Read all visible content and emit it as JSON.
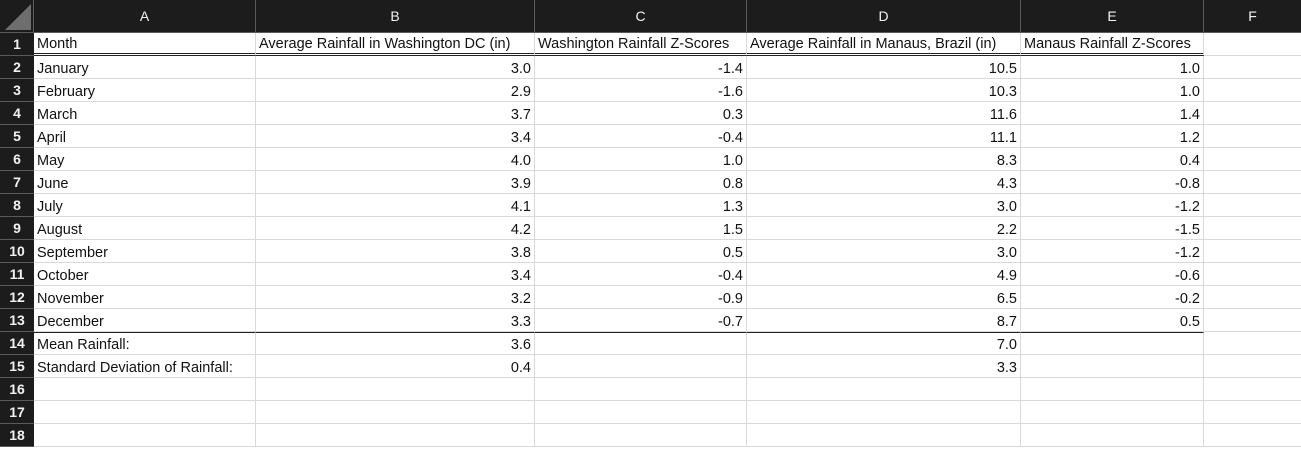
{
  "columns": [
    "A",
    "B",
    "C",
    "D",
    "E",
    "F"
  ],
  "headers": {
    "month": "Month",
    "dc_rain": "Average Rainfall in Washington DC (in)",
    "dc_z": "Washington Rainfall Z-Scores",
    "manaus_rain": "Average Rainfall in Manaus, Brazil (in)",
    "manaus_z": "Manaus Rainfall Z-Scores"
  },
  "rows": [
    {
      "month": "January",
      "dc": "3.0",
      "dcz": "-1.4",
      "mn": "10.5",
      "mnz": "1.0"
    },
    {
      "month": "February",
      "dc": "2.9",
      "dcz": "-1.6",
      "mn": "10.3",
      "mnz": "1.0"
    },
    {
      "month": "March",
      "dc": "3.7",
      "dcz": "0.3",
      "mn": "11.6",
      "mnz": "1.4"
    },
    {
      "month": "April",
      "dc": "3.4",
      "dcz": "-0.4",
      "mn": "11.1",
      "mnz": "1.2"
    },
    {
      "month": "May",
      "dc": "4.0",
      "dcz": "1.0",
      "mn": "8.3",
      "mnz": "0.4"
    },
    {
      "month": "June",
      "dc": "3.9",
      "dcz": "0.8",
      "mn": "4.3",
      "mnz": "-0.8"
    },
    {
      "month": "July",
      "dc": "4.1",
      "dcz": "1.3",
      "mn": "3.0",
      "mnz": "-1.2"
    },
    {
      "month": "August",
      "dc": "4.2",
      "dcz": "1.5",
      "mn": "2.2",
      "mnz": "-1.5"
    },
    {
      "month": "September",
      "dc": "3.8",
      "dcz": "0.5",
      "mn": "3.0",
      "mnz": "-1.2"
    },
    {
      "month": "October",
      "dc": "3.4",
      "dcz": "-0.4",
      "mn": "4.9",
      "mnz": "-0.6"
    },
    {
      "month": "November",
      "dc": "3.2",
      "dcz": "-0.9",
      "mn": "6.5",
      "mnz": "-0.2"
    },
    {
      "month": "December",
      "dc": "3.3",
      "dcz": "-0.7",
      "mn": "8.7",
      "mnz": "0.5"
    }
  ],
  "summary": {
    "mean_label": "Mean Rainfall:",
    "mean_dc": "3.6",
    "mean_mn": "7.0",
    "sd_label": "Standard Deviation of Rainfall:",
    "sd_dc": "0.4",
    "sd_mn": "3.3"
  },
  "row_numbers": [
    "1",
    "2",
    "3",
    "4",
    "5",
    "6",
    "7",
    "8",
    "9",
    "10",
    "11",
    "12",
    "13",
    "14",
    "15",
    "16",
    "17",
    "18"
  ]
}
